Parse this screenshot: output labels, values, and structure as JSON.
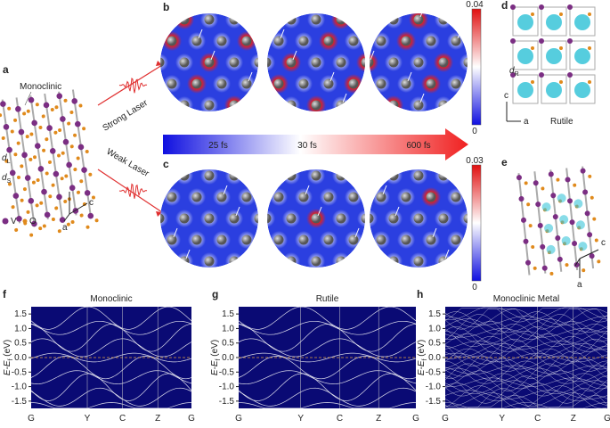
{
  "panel_labels": [
    "a",
    "b",
    "c",
    "d",
    "e",
    "f",
    "g",
    "h"
  ],
  "panel_a": {
    "phase": "Monoclinic",
    "dL": {
      "main": "d",
      "sub": "L"
    },
    "dS": {
      "main": "d",
      "sub": "S"
    },
    "legend": [
      "V",
      "O"
    ],
    "axes": [
      "c",
      "a"
    ]
  },
  "lasers": {
    "strong": "Strong Laser",
    "weak": "Weak Laser"
  },
  "timeline": [
    "25 fs",
    "30 fs",
    "600 fs"
  ],
  "colorbars": [
    {
      "max": 0.04,
      "min": 0
    },
    {
      "max": 0.03,
      "min": 0
    }
  ],
  "panel_d": {
    "dR": {
      "main": "d",
      "sub": "R"
    },
    "phase": "Rutile",
    "axes": [
      "c",
      "a"
    ]
  },
  "panel_e": {
    "axes": [
      "c",
      "a"
    ]
  },
  "band_plots": [
    {
      "title": "Monoclinic",
      "ylabel": {
        "main": "E-E",
        "sub": "f",
        "unit": " (eV)"
      },
      "ylim": [
        -1.75,
        1.75
      ],
      "yticks": [
        {
          "value": 1.5,
          "label": "1.5"
        },
        {
          "value": 1,
          "label": "1.0"
        },
        {
          "value": 0.5,
          "label": "0.5"
        },
        {
          "value": 0,
          "label": "0.0"
        },
        {
          "value": -0.5,
          "label": "-0.5"
        },
        {
          "value": -1,
          "label": "-1.0"
        },
        {
          "value": -1.5,
          "label": "-1.5"
        }
      ],
      "xticks": [
        "G",
        "Y",
        "C",
        "Z",
        "G"
      ]
    },
    {
      "title": "Rutile",
      "ylabel": {
        "main": "E-E",
        "sub": "f",
        "unit": " (eV)"
      },
      "ylim": [
        -1.75,
        1.75
      ],
      "yticks": [
        {
          "value": 1.5,
          "label": "1.5"
        },
        {
          "value": 1,
          "label": "1.0"
        },
        {
          "value": 0.5,
          "label": "0.5"
        },
        {
          "value": 0,
          "label": "0.0"
        },
        {
          "value": -0.5,
          "label": "-0.5"
        },
        {
          "value": -1,
          "label": "-1.0"
        },
        {
          "value": -1.5,
          "label": "-1.5"
        }
      ],
      "xticks": [
        "G",
        "Y",
        "C",
        "Z",
        "G"
      ]
    },
    {
      "title": "Monoclinic Metal",
      "ylabel": {
        "main": "E-E",
        "sub": "f",
        "unit": " (eV)"
      },
      "ylim": [
        -1.75,
        1.75
      ],
      "yticks": [
        {
          "value": 1.5,
          "label": "1.5"
        },
        {
          "value": 1,
          "label": "1.0"
        },
        {
          "value": 0.5,
          "label": "0.5"
        },
        {
          "value": 0,
          "label": "0.0"
        },
        {
          "value": -0.5,
          "label": "-0.5"
        },
        {
          "value": -1,
          "label": "-1.0"
        },
        {
          "value": -1.5,
          "label": "-1.5"
        }
      ],
      "xticks": [
        "G",
        "Y",
        "C",
        "Z",
        "G"
      ]
    }
  ]
}
